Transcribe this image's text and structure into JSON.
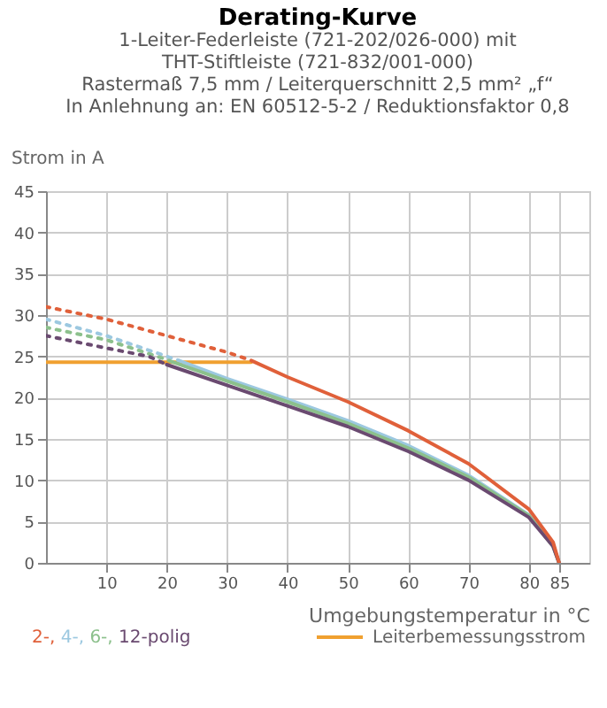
{
  "chart_data": {
    "type": "line",
    "title": "Derating-Kurve",
    "subtitle": "1-Leiter-Federleiste (721-202/026-000) mit\nTHT-Stiftleiste (721-832/001-000)\nRastermaß 7,5 mm / Leiterquerschnitt 2,5 mm² „f“\nIn Anlehnung an: EN 60512-5-2 / Reduktionsfaktor 0,8",
    "xlabel": "Umgebungstemperatur in °C",
    "ylabel": "Strom in A",
    "xlim": [
      0,
      90
    ],
    "ylim": [
      0,
      45
    ],
    "xticks": [
      10,
      20,
      30,
      40,
      50,
      60,
      70,
      80,
      85
    ],
    "yticks": [
      0,
      5,
      10,
      15,
      20,
      25,
      30,
      35,
      40,
      45
    ],
    "grid": true,
    "legend": "bottom",
    "series": [
      {
        "name": "Leiterbemessungsstrom",
        "color": "#f0a030",
        "x": [
          0,
          34
        ],
        "values": [
          24.3,
          24.3
        ],
        "line_style": "solid"
      },
      {
        "color": "#9cc8e0",
        "x": [
          0,
          10,
          20,
          22
        ],
        "values": [
          29.5,
          27.5,
          25,
          24.5
        ],
        "line_style": "dotted"
      },
      {
        "color": "#8cc08c",
        "x": [
          0,
          10,
          20,
          21
        ],
        "values": [
          28.5,
          27,
          24.6,
          24.3
        ],
        "line_style": "dotted"
      },
      {
        "color": "#6a4a70",
        "x": [
          0,
          10,
          17,
          20
        ],
        "values": [
          27.5,
          26,
          25,
          24
        ],
        "line_style": "dotted"
      },
      {
        "color": "#e0603a",
        "x": [
          0,
          10,
          20,
          30,
          34
        ],
        "values": [
          31,
          29.5,
          27.5,
          25.5,
          24.5
        ],
        "line_style": "dotted"
      },
      {
        "name": "4-,",
        "color": "#9cc8e0",
        "x": [
          22,
          30,
          40,
          50,
          60,
          70,
          80,
          84,
          85
        ],
        "values": [
          24.5,
          22.3,
          19.8,
          17.2,
          14.2,
          10.6,
          5.8,
          2.1,
          0
        ],
        "line_style": "solid"
      },
      {
        "name": "6-,",
        "color": "#8cc08c",
        "x": [
          21,
          30,
          40,
          50,
          60,
          70,
          80,
          84,
          85
        ],
        "values": [
          24.3,
          22,
          19.5,
          16.9,
          13.9,
          10.4,
          5.7,
          2,
          0
        ],
        "line_style": "solid"
      },
      {
        "name": "12-polig",
        "color": "#6a4a70",
        "x": [
          20,
          30,
          40,
          50,
          60,
          70,
          80,
          84,
          85
        ],
        "values": [
          24,
          21.5,
          19,
          16.5,
          13.5,
          10,
          5.5,
          2,
          0
        ],
        "line_style": "solid"
      },
      {
        "name": "2-,",
        "color": "#e0603a",
        "x": [
          34,
          40,
          50,
          60,
          70,
          80,
          84,
          85
        ],
        "values": [
          24.5,
          22.5,
          19.5,
          16,
          12,
          6.5,
          2.5,
          0
        ],
        "line_style": "solid"
      }
    ]
  }
}
